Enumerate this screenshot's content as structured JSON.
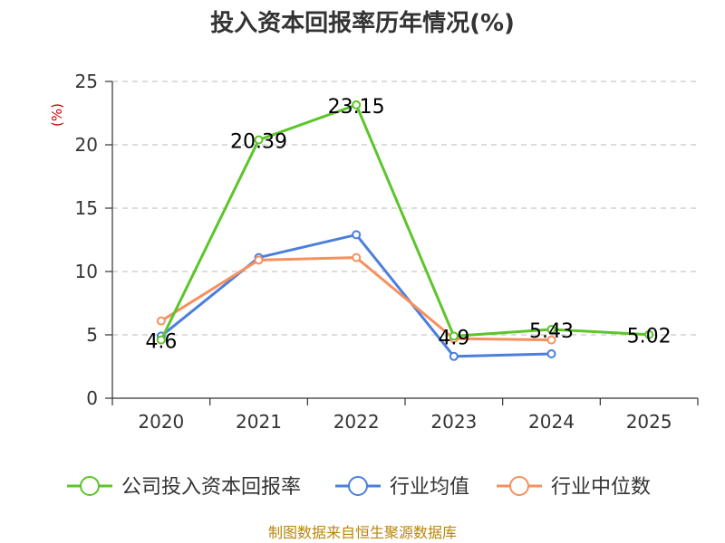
{
  "chart_data": {
    "type": "line",
    "title": "投入资本回报率历年情况(%)",
    "unit_label": "(%)",
    "categories": [
      "2020",
      "2021",
      "2022",
      "2023",
      "2024",
      "2025"
    ],
    "ylim": [
      0,
      25
    ],
    "yticks": [
      0,
      5,
      10,
      15,
      20,
      25
    ],
    "grid": true,
    "legend_position": "bottom",
    "series": [
      {
        "name": "公司投入资本回报率",
        "color": "#5cc52a",
        "values": [
          4.6,
          20.39,
          23.15,
          4.9,
          5.43,
          5.02
        ],
        "labels": [
          "4.6",
          "20.39",
          "23.15",
          "4.9",
          "5.43",
          "5.02"
        ]
      },
      {
        "name": "行业均值",
        "color": "#4a7fdc",
        "values": [
          4.9,
          11.1,
          12.9,
          3.3,
          3.5,
          null
        ]
      },
      {
        "name": "行业中位数",
        "color": "#f6905e",
        "values": [
          6.1,
          10.9,
          11.1,
          4.7,
          4.6,
          null
        ]
      }
    ]
  },
  "source": "制图数据来自恒生聚源数据库"
}
